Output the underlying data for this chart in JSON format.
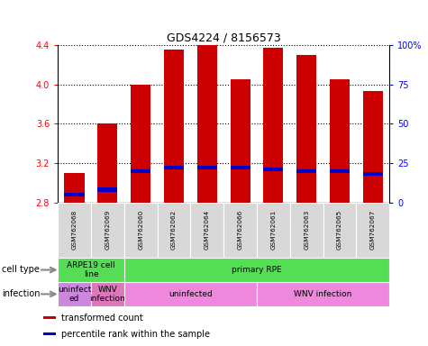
{
  "title": "GDS4224 / 8156573",
  "samples": [
    "GSM762068",
    "GSM762069",
    "GSM762060",
    "GSM762062",
    "GSM762064",
    "GSM762066",
    "GSM762061",
    "GSM762063",
    "GSM762065",
    "GSM762067"
  ],
  "transformed_counts": [
    3.1,
    3.6,
    4.0,
    4.35,
    4.4,
    4.05,
    4.37,
    4.3,
    4.05,
    3.93
  ],
  "percentile_ranks": [
    5,
    8,
    20,
    22,
    22,
    22,
    21,
    20,
    20,
    18
  ],
  "y_min": 2.8,
  "y_max": 4.4,
  "y_ticks": [
    2.8,
    3.2,
    3.6,
    4.0,
    4.4
  ],
  "y2_ticks": [
    0,
    25,
    50,
    75,
    100
  ],
  "bar_color": "#cc0000",
  "percentile_color": "#0000cc",
  "bar_width": 0.6,
  "cell_type_groups": [
    {
      "label": "ARPE19 cell\nline",
      "start": 0,
      "end": 2
    },
    {
      "label": "primary RPE",
      "start": 2,
      "end": 10
    }
  ],
  "infection_groups": [
    {
      "label": "uninfect\ned",
      "start": 0,
      "end": 1,
      "color": "#cc88dd"
    },
    {
      "label": "WNV\ninfection",
      "start": 1,
      "end": 2,
      "color": "#dd77bb"
    },
    {
      "label": "uninfected",
      "start": 2,
      "end": 6,
      "color": "#ee88dd"
    },
    {
      "label": "WNV infection",
      "start": 6,
      "end": 10,
      "color": "#ee88dd"
    }
  ],
  "cell_type_color": "#55dd55",
  "legend_items": [
    {
      "label": "transformed count",
      "color": "#cc0000"
    },
    {
      "label": "percentile rank within the sample",
      "color": "#0000cc"
    }
  ],
  "fig_width": 4.75,
  "fig_height": 3.84,
  "dpi": 100
}
